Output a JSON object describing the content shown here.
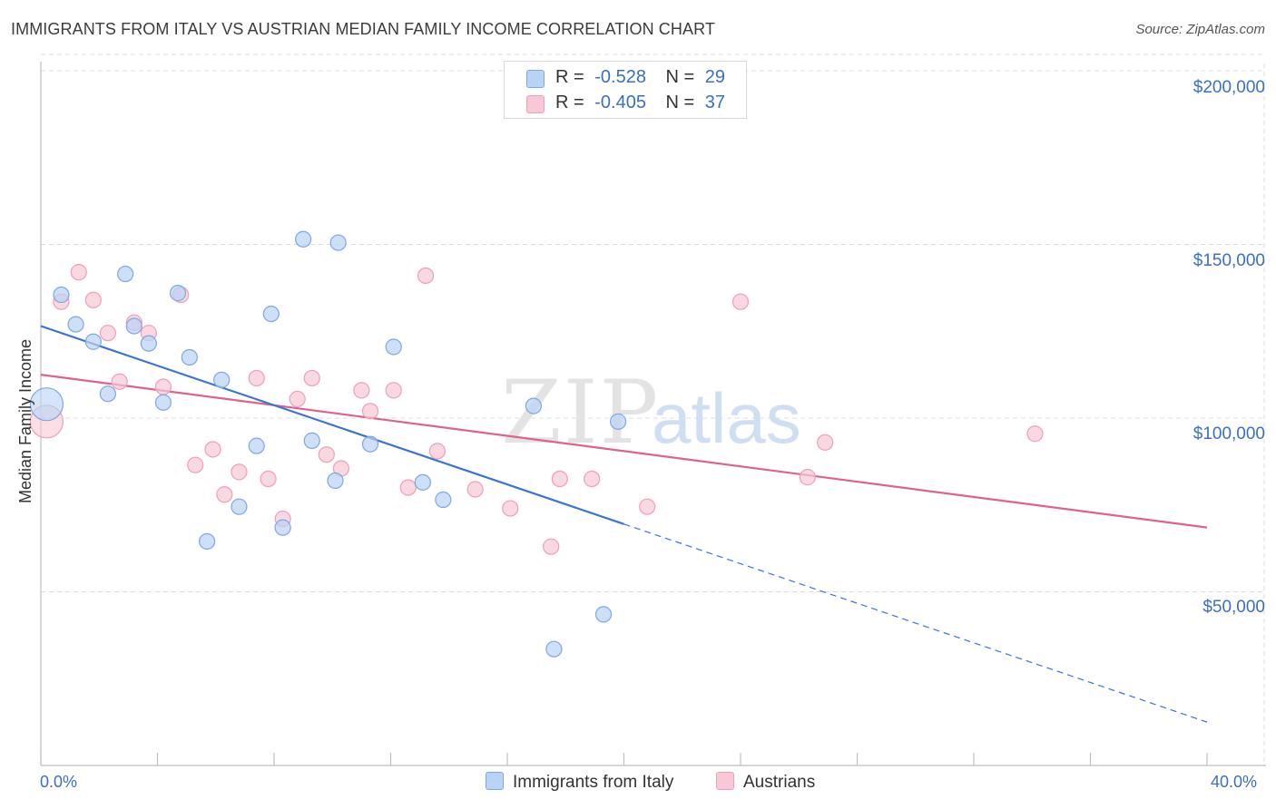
{
  "header": {
    "title": "IMMIGRANTS FROM ITALY VS AUSTRIAN MEDIAN FAMILY INCOME CORRELATION CHART",
    "source": "Source: ZipAtlas.com"
  },
  "watermark": {
    "zip": "ZIP",
    "atlas": "atlas"
  },
  "legend": {
    "rows": [
      {
        "r_label": "R =",
        "r_value": "-0.528",
        "n_label": "N =",
        "n_value": "29",
        "color": "#a9c8f2"
      },
      {
        "r_label": "R =",
        "r_value": "-0.405",
        "n_label": "N =",
        "n_value": "37",
        "color": "#f7bfd0"
      }
    ]
  },
  "colors": {
    "blue_fill": "#b8d3f5",
    "blue_stroke": "#7fa7e0",
    "blue_line": "#3a74d4",
    "pink_fill": "#f8c8d6",
    "pink_stroke": "#eda0b8",
    "pink_line": "#e0608f",
    "axis_label": "#3a6fc4",
    "grid": "#dcdcdc"
  },
  "chart_data": {
    "type": "scatter",
    "title": "IMMIGRANTS FROM ITALY VS AUSTRIAN MEDIAN FAMILY INCOME CORRELATION CHART",
    "xlabel": "",
    "ylabel": "Median Family Income",
    "xlim": [
      0,
      40
    ],
    "ylim": [
      0,
      210000
    ],
    "x_tick_labels": [
      "0.0%",
      "40.0%"
    ],
    "y_ticks": [
      50000,
      100000,
      150000,
      200000
    ],
    "y_tick_labels": [
      "$50,000",
      "$100,000",
      "$150,000",
      "$200,000"
    ],
    "grid": true,
    "legend_position": "top-center",
    "series": [
      {
        "name": "Immigrants from Italy",
        "color": "#7fa7e0",
        "points": [
          [
            0.2,
            104000
          ],
          [
            0.7,
            135500
          ],
          [
            1.2,
            127000
          ],
          [
            1.8,
            122000
          ],
          [
            2.3,
            107000
          ],
          [
            2.9,
            141500
          ],
          [
            3.2,
            126500
          ],
          [
            3.7,
            121500
          ],
          [
            4.2,
            104500
          ],
          [
            4.7,
            136000
          ],
          [
            5.1,
            117500
          ],
          [
            5.7,
            64500
          ],
          [
            6.2,
            111000
          ],
          [
            6.8,
            74500
          ],
          [
            7.4,
            92000
          ],
          [
            7.9,
            130000
          ],
          [
            8.3,
            68500
          ],
          [
            9.0,
            151500
          ],
          [
            9.3,
            93500
          ],
          [
            10.1,
            82000
          ],
          [
            10.2,
            150500
          ],
          [
            11.3,
            92500
          ],
          [
            12.1,
            120500
          ],
          [
            13.1,
            81500
          ],
          [
            13.8,
            76500
          ],
          [
            16.9,
            103500
          ],
          [
            17.6,
            33500
          ],
          [
            19.3,
            43500
          ],
          [
            19.8,
            99000
          ]
        ],
        "trend": {
          "x": [
            0,
            20
          ],
          "y": [
            126500,
            69500
          ],
          "dashed_extension": {
            "x": [
              20,
              40
            ],
            "y": [
              69500,
              12500
            ]
          }
        }
      },
      {
        "name": "Austrians",
        "color": "#eda0b8",
        "points": [
          [
            0.2,
            99000
          ],
          [
            0.7,
            133500
          ],
          [
            1.3,
            142000
          ],
          [
            1.8,
            134000
          ],
          [
            2.3,
            124500
          ],
          [
            2.7,
            110500
          ],
          [
            3.2,
            127500
          ],
          [
            3.7,
            124500
          ],
          [
            4.2,
            109000
          ],
          [
            4.8,
            135500
          ],
          [
            5.3,
            86500
          ],
          [
            5.9,
            91000
          ],
          [
            6.3,
            78000
          ],
          [
            6.8,
            84500
          ],
          [
            7.4,
            111500
          ],
          [
            7.8,
            82500
          ],
          [
            8.3,
            71000
          ],
          [
            8.8,
            105500
          ],
          [
            9.3,
            111500
          ],
          [
            9.8,
            89500
          ],
          [
            10.3,
            85500
          ],
          [
            11.0,
            108000
          ],
          [
            11.3,
            102000
          ],
          [
            12.1,
            108000
          ],
          [
            12.6,
            80000
          ],
          [
            13.2,
            141000
          ],
          [
            13.6,
            90500
          ],
          [
            14.9,
            79500
          ],
          [
            16.1,
            74000
          ],
          [
            17.5,
            63000
          ],
          [
            17.8,
            82500
          ],
          [
            18.9,
            82500
          ],
          [
            20.8,
            74500
          ],
          [
            24.0,
            133500
          ],
          [
            26.3,
            83000
          ],
          [
            26.9,
            93000
          ],
          [
            34.1,
            95500
          ]
        ],
        "trend": {
          "x": [
            0,
            40
          ],
          "y": [
            112500,
            68500
          ]
        }
      }
    ]
  }
}
